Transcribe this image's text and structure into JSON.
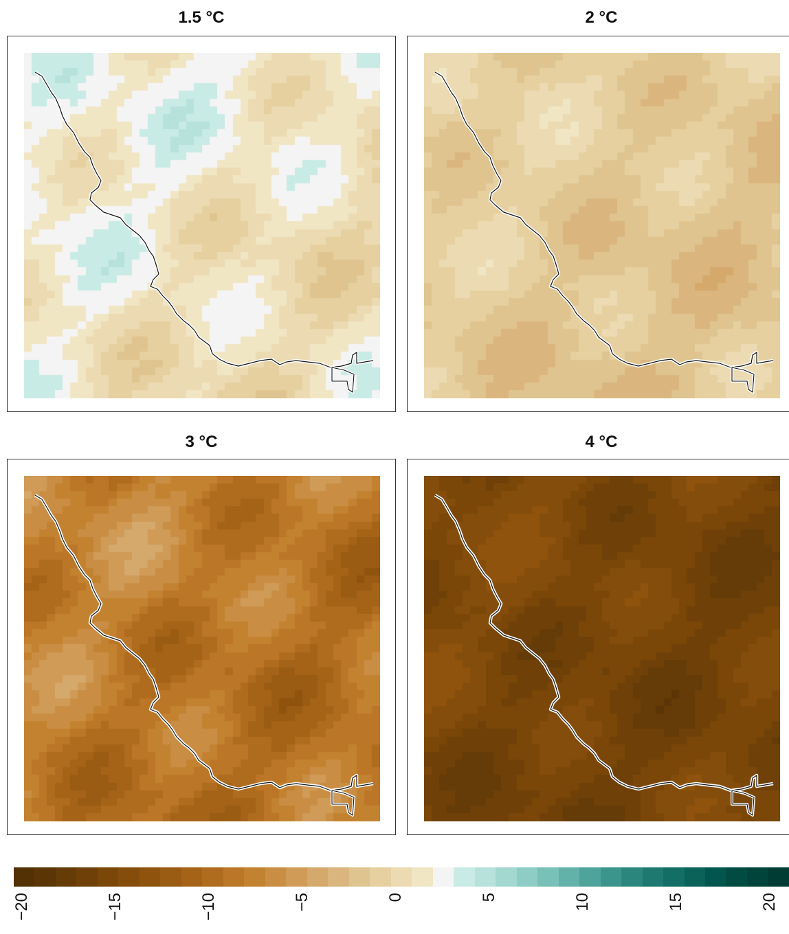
{
  "panels": [
    {
      "id": "p1",
      "title": "1.5 °C",
      "base": 1.0,
      "amp": 2.2
    },
    {
      "id": "p2",
      "title": "2 °C",
      "base": -1.6,
      "amp": 1.6
    },
    {
      "id": "p3",
      "title": "3 °C",
      "base": -8.5,
      "amp": 2.8
    },
    {
      "id": "p4",
      "title": "4 °C",
      "base": -15.5,
      "amp": 1.8
    }
  ],
  "legend": {
    "min": -20,
    "max": 20,
    "ticks": [
      "−20",
      "−15",
      "−10",
      "−5",
      "0",
      "5",
      "10",
      "15",
      "20"
    ],
    "colors": [
      "#543005",
      "#5c3506",
      "#653b07",
      "#6f4108",
      "#7a4709",
      "#854d0b",
      "#8f530d",
      "#9a5b12",
      "#a56318",
      "#b06c1e",
      "#bb7627",
      "#c38230",
      "#c98e44",
      "#cf9b57",
      "#d5a86b",
      "#dab67e",
      "#e0c48f",
      "#e6d0a0",
      "#ecdbb2",
      "#f1e6c4",
      "#f4f4f4",
      "#c9ebe5",
      "#b7e2dc",
      "#a3d8d1",
      "#8ecdc5",
      "#78c1b8",
      "#62b2a9",
      "#4ea39a",
      "#3b958c",
      "#2b877e",
      "#1e7a71",
      "#136e65",
      "#0a6259",
      "#03564d",
      "#004c43",
      "#00443b",
      "#003c33"
    ]
  }
}
